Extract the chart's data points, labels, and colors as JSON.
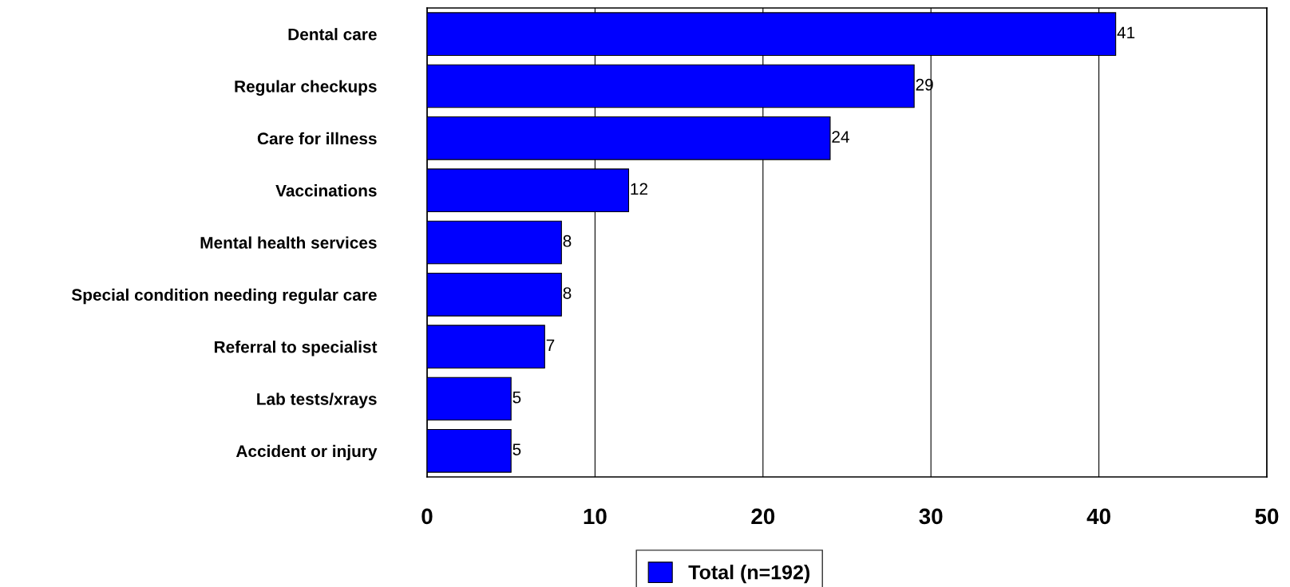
{
  "chart_data": {
    "type": "bar",
    "orientation": "horizontal",
    "categories": [
      "Dental care",
      "Regular checkups",
      "Care for illness",
      "Vaccinations",
      "Mental health services",
      "Special condition needing regular care",
      "Referral to specialist",
      "Lab tests/xrays",
      "Accident or injury"
    ],
    "series": [
      {
        "name": "Total (n=192)",
        "color": "#0000ff",
        "values": [
          41,
          29,
          24,
          12,
          8,
          8,
          7,
          5,
          5
        ]
      }
    ],
    "xlim": [
      0,
      50
    ],
    "xticks": [
      0,
      10,
      20,
      30,
      40,
      50
    ],
    "grid": "x",
    "data_labels": true,
    "legend": "bottom"
  }
}
